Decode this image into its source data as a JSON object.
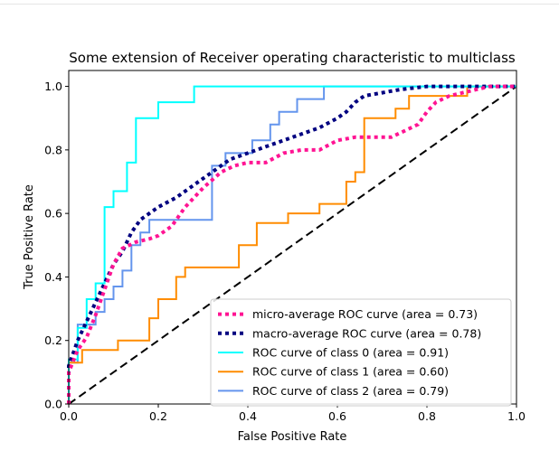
{
  "chart_data": {
    "type": "line",
    "title": "Some extension of Receiver operating characteristic to multiclass",
    "xlabel": "False Positive Rate",
    "ylabel": "True Positive Rate",
    "xlim": [
      0.0,
      1.0
    ],
    "ylim": [
      0.0,
      1.05
    ],
    "xticks": [
      "0.0",
      "0.2",
      "0.4",
      "0.6",
      "0.8",
      "1.0"
    ],
    "yticks": [
      "0.0",
      "0.2",
      "0.4",
      "0.6",
      "0.8",
      "1.0"
    ],
    "grid": false,
    "legend_position": "lower-right",
    "series": [
      {
        "name": "micro-average ROC curve (area = 0.73)",
        "color": "#ff1493",
        "style": "dotted",
        "x": [
          0.0,
          0.0,
          0.02,
          0.04,
          0.06,
          0.08,
          0.1,
          0.12,
          0.15,
          0.18,
          0.2,
          0.23,
          0.26,
          0.3,
          0.34,
          0.37,
          0.4,
          0.44,
          0.48,
          0.52,
          0.56,
          0.6,
          0.64,
          0.68,
          0.72,
          0.75,
          0.78,
          0.8,
          0.82,
          0.85,
          0.88,
          0.91,
          0.94,
          1.0
        ],
        "y": [
          0.0,
          0.1,
          0.17,
          0.21,
          0.28,
          0.36,
          0.44,
          0.49,
          0.51,
          0.52,
          0.53,
          0.56,
          0.62,
          0.68,
          0.73,
          0.75,
          0.76,
          0.76,
          0.79,
          0.8,
          0.8,
          0.83,
          0.84,
          0.84,
          0.84,
          0.86,
          0.88,
          0.92,
          0.95,
          0.97,
          0.98,
          0.99,
          1.0,
          1.0
        ]
      },
      {
        "name": "macro-average ROC curve (area = 0.78)",
        "color": "#000080",
        "style": "dotted",
        "x": [
          0.0,
          0.0,
          0.02,
          0.04,
          0.06,
          0.08,
          0.1,
          0.12,
          0.14,
          0.16,
          0.18,
          0.2,
          0.24,
          0.28,
          0.32,
          0.36,
          0.4,
          0.44,
          0.48,
          0.52,
          0.56,
          0.6,
          0.62,
          0.64,
          0.66,
          0.7,
          0.74,
          0.8,
          0.86,
          0.92,
          1.0
        ],
        "y": [
          0.0,
          0.12,
          0.2,
          0.26,
          0.32,
          0.38,
          0.44,
          0.48,
          0.54,
          0.58,
          0.6,
          0.62,
          0.65,
          0.69,
          0.73,
          0.77,
          0.79,
          0.81,
          0.83,
          0.85,
          0.87,
          0.9,
          0.92,
          0.95,
          0.97,
          0.98,
          0.99,
          1.0,
          1.0,
          1.0,
          1.0
        ]
      },
      {
        "name": "ROC curve of class 0 (area = 0.91)",
        "color": "#00ffff",
        "style": "solid",
        "x": [
          0.0,
          0.0,
          0.02,
          0.02,
          0.04,
          0.04,
          0.06,
          0.06,
          0.08,
          0.08,
          0.1,
          0.1,
          0.13,
          0.13,
          0.15,
          0.15,
          0.2,
          0.2,
          0.28,
          0.28,
          1.0
        ],
        "y": [
          0.0,
          0.14,
          0.14,
          0.24,
          0.24,
          0.33,
          0.33,
          0.38,
          0.38,
          0.62,
          0.62,
          0.67,
          0.67,
          0.76,
          0.76,
          0.9,
          0.9,
          0.95,
          0.95,
          1.0,
          1.0
        ]
      },
      {
        "name": "ROC curve of class 1 (area = 0.60)",
        "color": "#ff8c00",
        "style": "solid",
        "x": [
          0.0,
          0.0,
          0.03,
          0.03,
          0.11,
          0.11,
          0.18,
          0.18,
          0.2,
          0.2,
          0.24,
          0.24,
          0.26,
          0.26,
          0.38,
          0.38,
          0.42,
          0.42,
          0.49,
          0.49,
          0.56,
          0.56,
          0.62,
          0.62,
          0.64,
          0.64,
          0.66,
          0.66,
          0.73,
          0.73,
          0.76,
          0.76,
          0.78,
          0.78,
          0.89,
          0.89,
          1.0
        ],
        "y": [
          0.0,
          0.13,
          0.13,
          0.17,
          0.17,
          0.2,
          0.2,
          0.27,
          0.27,
          0.33,
          0.33,
          0.4,
          0.4,
          0.43,
          0.43,
          0.5,
          0.5,
          0.57,
          0.57,
          0.6,
          0.6,
          0.63,
          0.63,
          0.7,
          0.7,
          0.73,
          0.73,
          0.9,
          0.9,
          0.93,
          0.93,
          0.97,
          0.97,
          0.97,
          0.97,
          1.0,
          1.0
        ]
      },
      {
        "name": "ROC curve of class 2 (area = 0.79)",
        "color": "#6495ed",
        "style": "solid",
        "x": [
          0.0,
          0.0,
          0.02,
          0.02,
          0.06,
          0.06,
          0.08,
          0.08,
          0.1,
          0.1,
          0.12,
          0.12,
          0.14,
          0.14,
          0.16,
          0.16,
          0.18,
          0.18,
          0.32,
          0.32,
          0.35,
          0.35,
          0.41,
          0.41,
          0.45,
          0.45,
          0.47,
          0.47,
          0.51,
          0.51,
          0.57,
          0.57,
          1.0
        ],
        "y": [
          0.0,
          0.13,
          0.13,
          0.25,
          0.25,
          0.29,
          0.29,
          0.33,
          0.33,
          0.37,
          0.37,
          0.42,
          0.42,
          0.5,
          0.5,
          0.54,
          0.54,
          0.58,
          0.58,
          0.75,
          0.75,
          0.79,
          0.79,
          0.83,
          0.83,
          0.88,
          0.88,
          0.92,
          0.92,
          0.96,
          0.96,
          1.0,
          1.0
        ]
      },
      {
        "name": "",
        "color": "#000000",
        "style": "dashed",
        "x": [
          0.0,
          1.0
        ],
        "y": [
          0.0,
          1.0
        ]
      }
    ]
  }
}
